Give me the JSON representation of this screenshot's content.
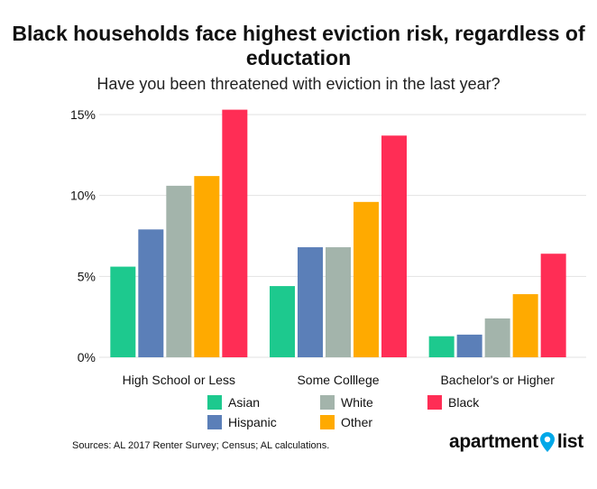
{
  "chart_data": {
    "type": "bar",
    "title": "Black households face highest eviction risk, regardless of eductation",
    "subtitle": "Have you been threatened with eviction in the last year?",
    "categories": [
      "High School or Less",
      "Some Colllege",
      "Bachelor's or Higher"
    ],
    "series": [
      {
        "name": "Asian",
        "color": "#1dc98e",
        "values": [
          5.6,
          4.4,
          1.3
        ]
      },
      {
        "name": "Hispanic",
        "color": "#5b7fb8",
        "values": [
          7.9,
          6.8,
          1.4
        ]
      },
      {
        "name": "White",
        "color": "#a3b4ab",
        "values": [
          10.6,
          6.8,
          2.4
        ]
      },
      {
        "name": "Other",
        "color": "#ffaa00",
        "values": [
          11.2,
          9.6,
          3.9
        ]
      },
      {
        "name": "Black",
        "color": "#ff2d55",
        "values": [
          15.3,
          13.7,
          6.4
        ]
      }
    ],
    "ylim": [
      0,
      15.5
    ],
    "yticks": [
      0,
      5,
      10,
      15
    ],
    "ytick_labels": [
      "0%",
      "5%",
      "10%",
      "15%"
    ],
    "xlabel": "",
    "ylabel": "",
    "legend": "bottom"
  },
  "legend_items": [
    {
      "label": "Asian",
      "color": "#1dc98e"
    },
    {
      "label": "White",
      "color": "#a3b4ab"
    },
    {
      "label": "Black",
      "color": "#ff2d55"
    },
    {
      "label": "Hispanic",
      "color": "#5b7fb8"
    },
    {
      "label": "Other",
      "color": "#ffaa00"
    }
  ],
  "source": "Sources: AL 2017 Renter Survey; Census; AL calculations.",
  "brand": {
    "part1": "apartment",
    "part2": "list",
    "accent": "#00a8e8"
  }
}
